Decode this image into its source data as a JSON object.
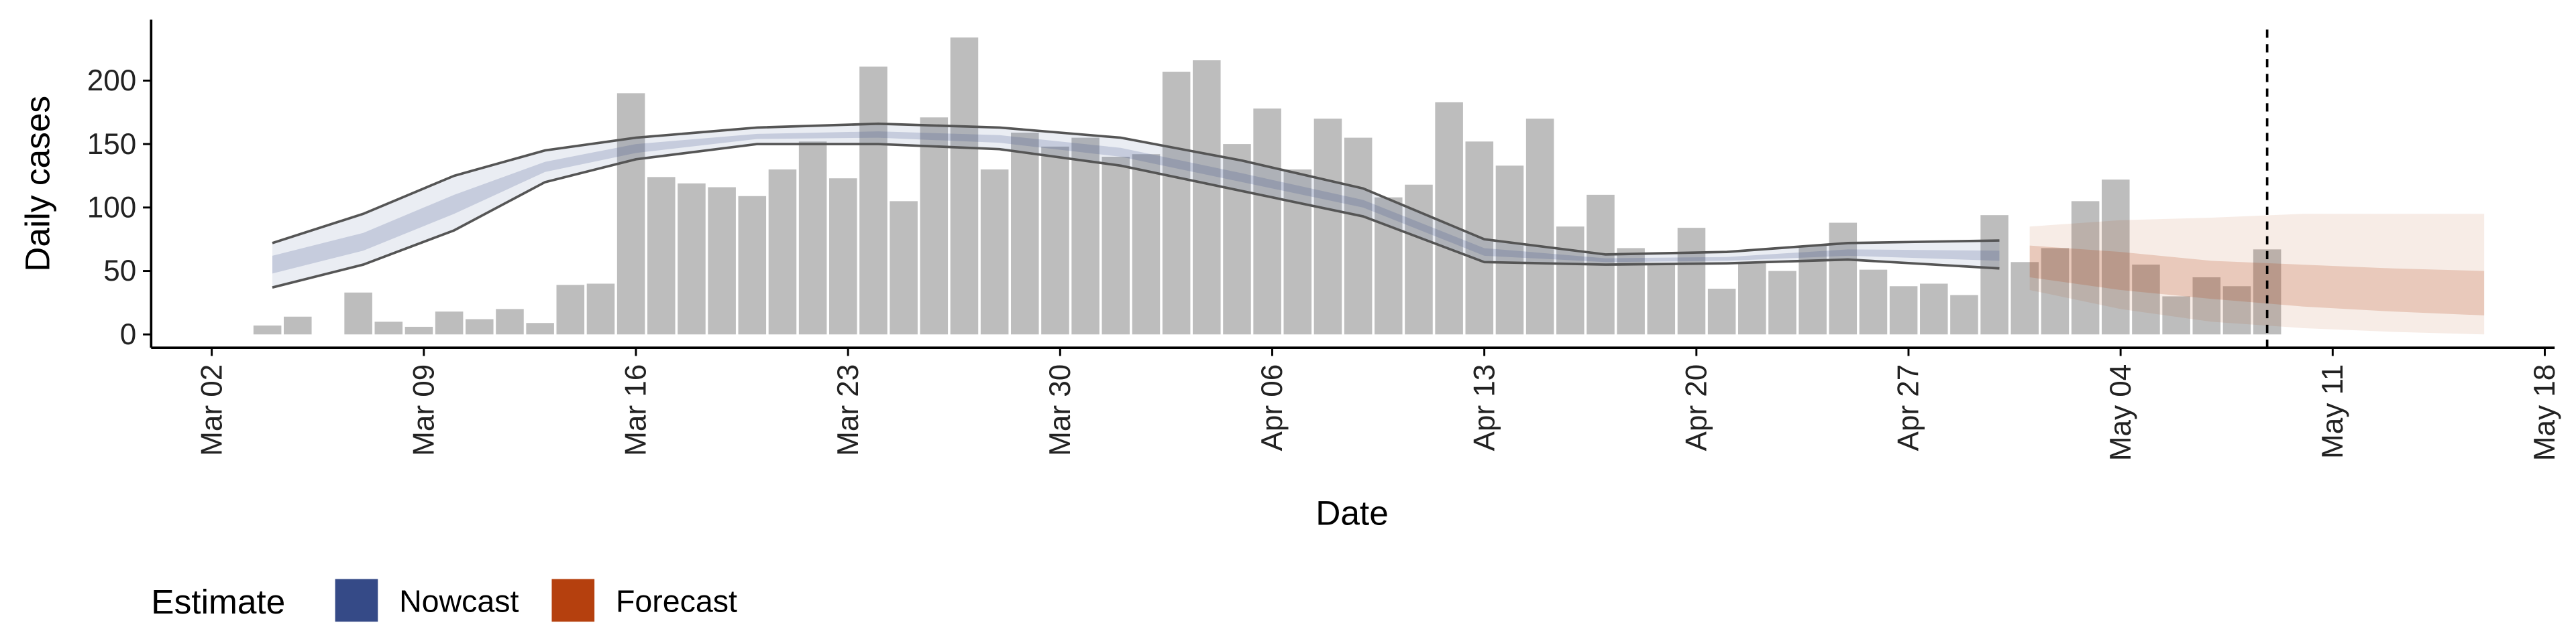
{
  "chart_data": {
    "type": "bar",
    "x_label": "Date",
    "y_label": "Daily cases",
    "bar_color": "#bdbdbd",
    "categories": [
      "Mar 04",
      "Mar 05",
      "Mar 06",
      "Mar 07",
      "Mar 08",
      "Mar 09",
      "Mar 10",
      "Mar 11",
      "Mar 12",
      "Mar 13",
      "Mar 14",
      "Mar 15",
      "Mar 16",
      "Mar 17",
      "Mar 18",
      "Mar 19",
      "Mar 20",
      "Mar 21",
      "Mar 22",
      "Mar 23",
      "Mar 24",
      "Mar 25",
      "Mar 26",
      "Mar 27",
      "Mar 28",
      "Mar 29",
      "Mar 30",
      "Mar 31",
      "Apr 01",
      "Apr 02",
      "Apr 03",
      "Apr 04",
      "Apr 05",
      "Apr 06",
      "Apr 07",
      "Apr 08",
      "Apr 09",
      "Apr 10",
      "Apr 11",
      "Apr 12",
      "Apr 13",
      "Apr 14",
      "Apr 15",
      "Apr 16",
      "Apr 17",
      "Apr 18",
      "Apr 19",
      "Apr 20",
      "Apr 21",
      "Apr 22",
      "Apr 23",
      "Apr 24",
      "Apr 25",
      "Apr 26",
      "Apr 27",
      "Apr 28",
      "Apr 29",
      "Apr 30",
      "May 01",
      "May 02",
      "May 03",
      "May 04",
      "May 05",
      "May 06",
      "May 07",
      "May 08",
      "May 09"
    ],
    "values": [
      7,
      14,
      0,
      33,
      10,
      6,
      18,
      12,
      20,
      9,
      39,
      40,
      190,
      124,
      119,
      116,
      109,
      130,
      152,
      123,
      211,
      105,
      171,
      234,
      130,
      159,
      148,
      155,
      140,
      142,
      207,
      216,
      150,
      178,
      130,
      170,
      155,
      108,
      118,
      183,
      152,
      133,
      170,
      85,
      110,
      68,
      55,
      84,
      36,
      57,
      50,
      70,
      88,
      51,
      38,
      40,
      31,
      94,
      57,
      68,
      105,
      122,
      55,
      30,
      45,
      38,
      67
    ],
    "legend_title": "Estimate",
    "series": [
      {
        "name": "Nowcast",
        "color": "#354a87",
        "x": [
          "Mar 04",
          "Mar 07",
          "Mar 10",
          "Mar 13",
          "Mar 16",
          "Mar 20",
          "Mar 24",
          "Mar 28",
          "Apr 01",
          "Apr 05",
          "Apr 09",
          "Apr 13",
          "Apr 17",
          "Apr 21",
          "Apr 25",
          "Apr 30"
        ],
        "upper_90": [
          72,
          95,
          125,
          145,
          155,
          163,
          166,
          163,
          155,
          137,
          115,
          75,
          63,
          65,
          72,
          74
        ],
        "lower_90": [
          37,
          55,
          82,
          120,
          138,
          150,
          150,
          146,
          133,
          113,
          93,
          57,
          55,
          56,
          59,
          52
        ],
        "upper_50": [
          62,
          80,
          110,
          136,
          150,
          158,
          160,
          157,
          147,
          127,
          106,
          68,
          60,
          61,
          67,
          66
        ],
        "lower_50": [
          48,
          66,
          95,
          128,
          143,
          154,
          155,
          151,
          140,
          120,
          100,
          62,
          57,
          58,
          62,
          58
        ]
      },
      {
        "name": "Forecast",
        "color": "#b5400e",
        "x": [
          "May 01",
          "May 04",
          "May 07",
          "May 10",
          "May 13",
          "May 16"
        ],
        "upper_90": [
          85,
          90,
          92,
          95,
          95,
          95
        ],
        "lower_90": [
          35,
          20,
          10,
          5,
          2,
          0
        ],
        "upper_50": [
          70,
          65,
          58,
          55,
          52,
          50
        ],
        "lower_50": [
          45,
          35,
          28,
          22,
          18,
          15
        ]
      }
    ],
    "reference_date": "May 09",
    "xlim": [
      "Feb 29",
      "May 18"
    ],
    "xticks": [
      "Mar 02",
      "Mar 09",
      "Mar 16",
      "Mar 23",
      "Mar 30",
      "Apr 06",
      "Apr 13",
      "Apr 20",
      "Apr 27",
      "May 04",
      "May 11",
      "May 18"
    ],
    "ylim": [
      -10.5,
      248
    ],
    "yticks": [
      0,
      50,
      100,
      150,
      200
    ]
  }
}
